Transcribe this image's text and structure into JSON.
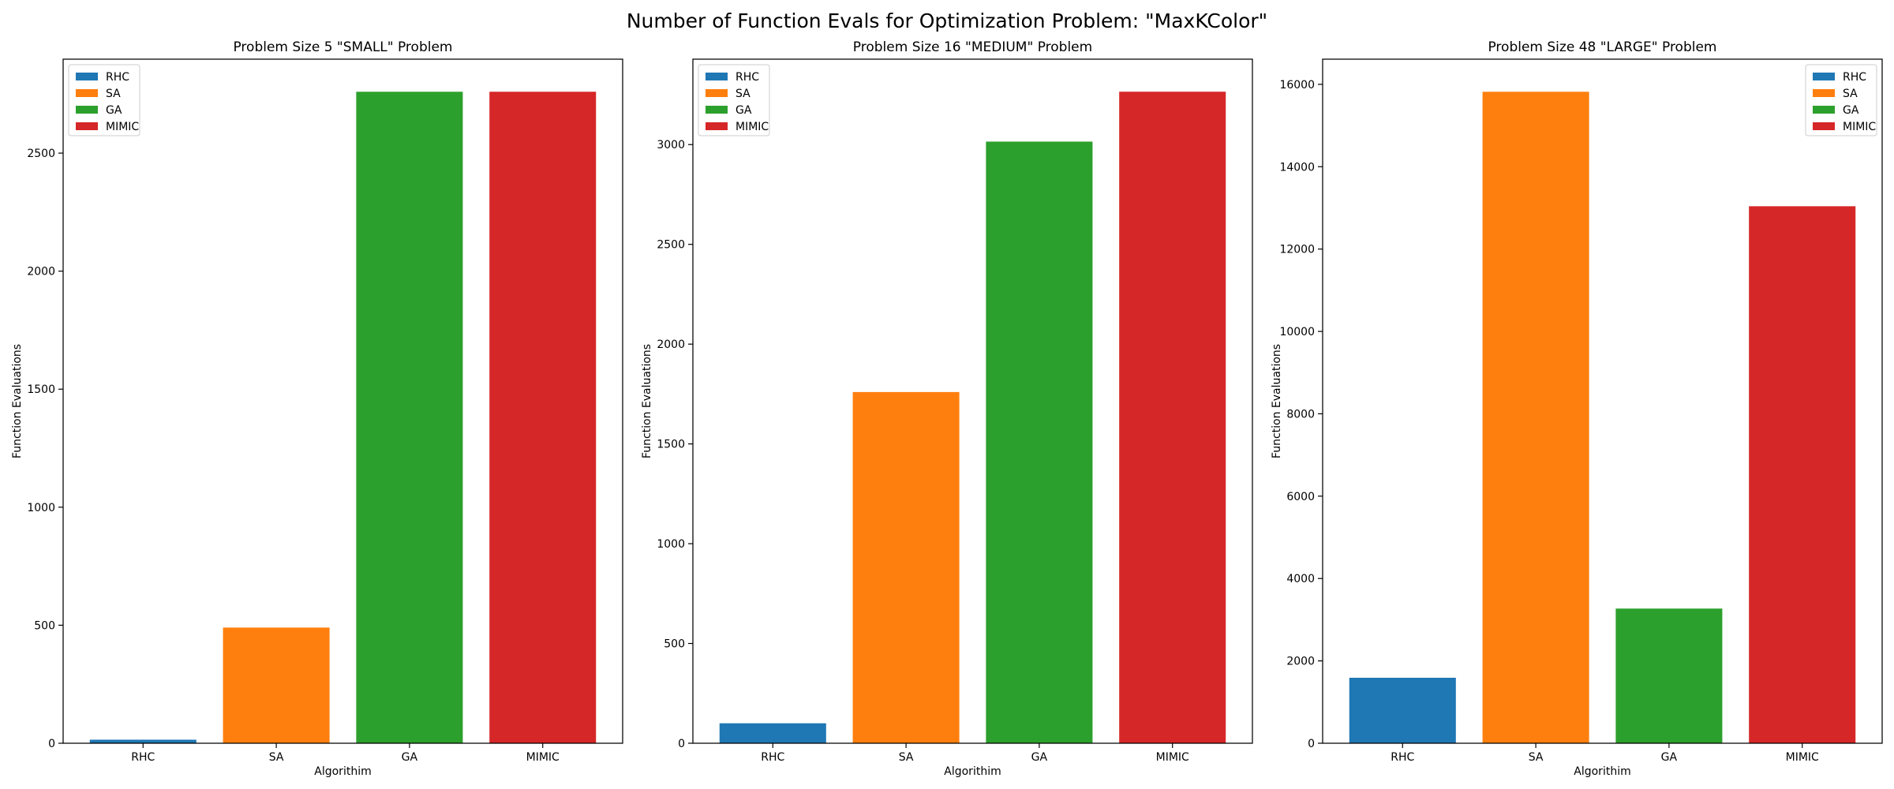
{
  "figure": {
    "suptitle": "Number of Function Evals for Optimization Problem: \"MaxKColor\""
  },
  "colors": {
    "RHC": "#1f77b4",
    "SA": "#ff7f0e",
    "GA": "#2ca02c",
    "MIMIC": "#d62728"
  },
  "chart_data": [
    {
      "type": "bar",
      "title": "Problem Size 5 \"SMALL\" Problem",
      "xlabel": "Algorithim",
      "ylabel": "Function Evaluations",
      "categories": [
        "RHC",
        "SA",
        "GA",
        "MIMIC"
      ],
      "values": [
        15,
        490,
        2760,
        2760
      ],
      "ylim": [
        0,
        2898
      ],
      "yticks": [
        0,
        500,
        1000,
        1500,
        2000,
        2500
      ],
      "legend": {
        "placement": "top-left",
        "entries": [
          "RHC",
          "SA",
          "GA",
          "MIMIC"
        ]
      },
      "grid": false
    },
    {
      "type": "bar",
      "title": "Problem Size 16 \"MEDIUM\" Problem",
      "xlabel": "Algorithim",
      "ylabel": "Function Evaluations",
      "categories": [
        "RHC",
        "SA",
        "GA",
        "MIMIC"
      ],
      "values": [
        100,
        1760,
        3015,
        3265
      ],
      "ylim": [
        0,
        3428
      ],
      "yticks": [
        0,
        500,
        1000,
        1500,
        2000,
        2500,
        3000
      ],
      "legend": {
        "placement": "top-left",
        "entries": [
          "RHC",
          "SA",
          "GA",
          "MIMIC"
        ]
      },
      "grid": false
    },
    {
      "type": "bar",
      "title": "Problem Size 48 \"LARGE\" Problem",
      "xlabel": "Algorithim",
      "ylabel": "Function Evaluations",
      "categories": [
        "RHC",
        "SA",
        "GA",
        "MIMIC"
      ],
      "values": [
        1590,
        15820,
        3270,
        13040
      ],
      "ylim": [
        0,
        16611
      ],
      "yticks": [
        0,
        2000,
        4000,
        6000,
        8000,
        10000,
        12000,
        14000,
        16000
      ],
      "legend": {
        "placement": "top-right",
        "entries": [
          "RHC",
          "SA",
          "GA",
          "MIMIC"
        ]
      },
      "grid": false
    }
  ]
}
